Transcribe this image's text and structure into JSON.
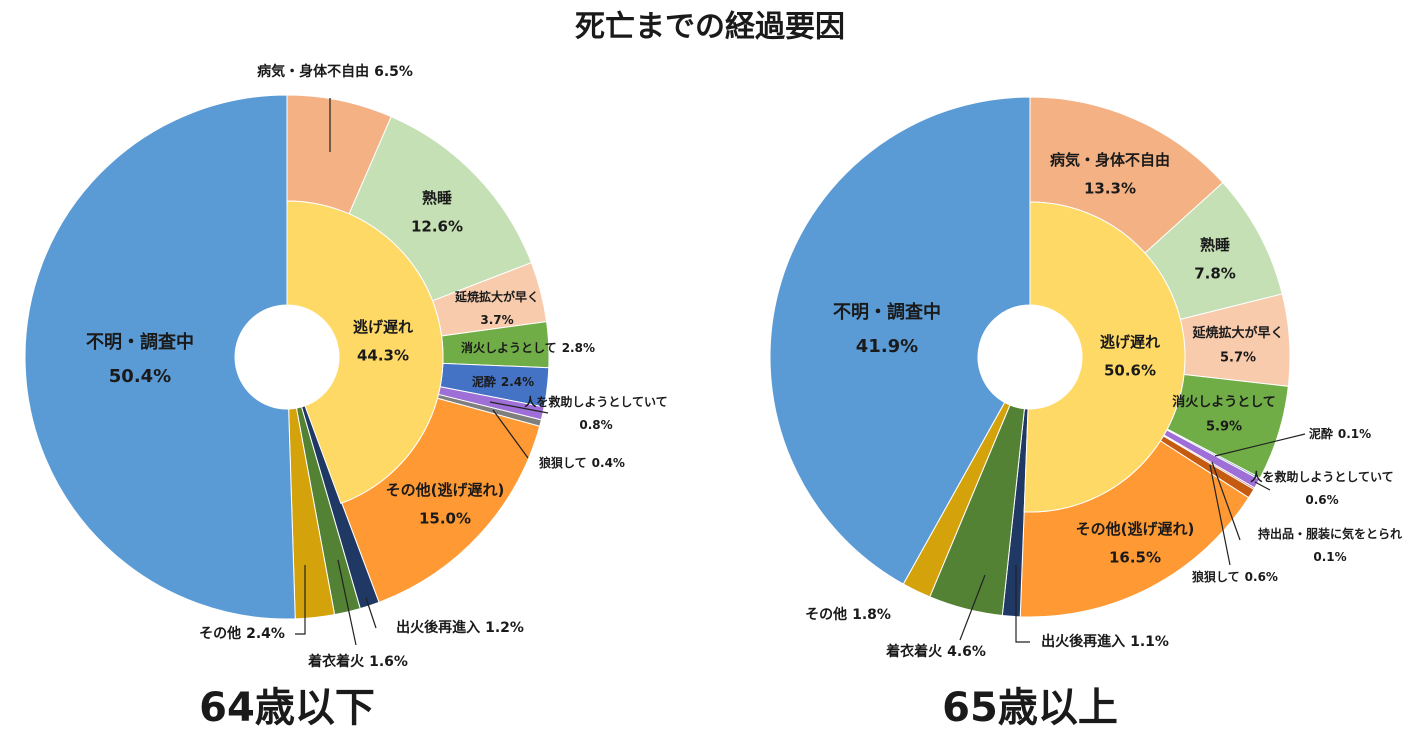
{
  "title": "死亡までの経過要因",
  "chart_data": [
    {
      "type": "sunburst",
      "title": "64歳以下",
      "inner": {
        "name": "逃げ遅れ",
        "value": 44.3,
        "value_label": "44.3%",
        "color": "#ffd966"
      },
      "segments": [
        {
          "name": "病気・身体不自由",
          "value": 6.5,
          "value_label": "6.5%",
          "color": "#f4b183",
          "ring": "outer"
        },
        {
          "name": "熟睡",
          "value": 12.6,
          "value_label": "12.6%",
          "color": "#c5e0b4",
          "ring": "outer"
        },
        {
          "name": "延焼拡大が早く",
          "value": 3.7,
          "value_label": "3.7%",
          "color": "#f8cbad",
          "ring": "outer"
        },
        {
          "name": "消火しようとして",
          "value": 2.8,
          "value_label": "2.8%",
          "color": "#70ad47",
          "ring": "outer"
        },
        {
          "name": "泥酔",
          "value": 2.4,
          "value_label": "2.4%",
          "color": "#4472c4",
          "ring": "outer"
        },
        {
          "name": "人を救助しようとしていて",
          "value": 0.8,
          "value_label": "0.8%",
          "color": "#9e6fd6",
          "ring": "outer"
        },
        {
          "name": "狼狽して",
          "value": 0.4,
          "value_label": "0.4%",
          "color": "#7f7f7f",
          "ring": "outer"
        },
        {
          "name": "その他(逃げ遅れ)",
          "value": 15.0,
          "value_label": "15.0%",
          "color": "#ff9933",
          "ring": "outer"
        },
        {
          "name": "出火後再進入",
          "value": 1.2,
          "value_label": "1.2%",
          "color": "#1f3864",
          "ring": "full"
        },
        {
          "name": "着衣着火",
          "value": 1.6,
          "value_label": "1.6%",
          "color": "#548235",
          "ring": "full"
        },
        {
          "name": "その他",
          "value": 2.4,
          "value_label": "2.4%",
          "color": "#d4a20a",
          "ring": "full"
        },
        {
          "name": "不明・調査中",
          "value": 50.4,
          "value_label": "50.4%",
          "color": "#5b9bd5",
          "ring": "full"
        }
      ]
    },
    {
      "type": "sunburst",
      "title": "65歳以上",
      "inner": {
        "name": "逃げ遅れ",
        "value": 50.6,
        "value_label": "50.6%",
        "color": "#ffd966"
      },
      "segments": [
        {
          "name": "病気・身体不自由",
          "value": 13.3,
          "value_label": "13.3%",
          "color": "#f4b183",
          "ring": "outer"
        },
        {
          "name": "熟睡",
          "value": 7.8,
          "value_label": "7.8%",
          "color": "#c5e0b4",
          "ring": "outer"
        },
        {
          "name": "延焼拡大が早く",
          "value": 5.7,
          "value_label": "5.7%",
          "color": "#f8cbad",
          "ring": "outer"
        },
        {
          "name": "消火しようとして",
          "value": 5.9,
          "value_label": "5.9%",
          "color": "#70ad47",
          "ring": "outer"
        },
        {
          "name": "泥酔",
          "value": 0.1,
          "value_label": "0.1%",
          "color": "#4472c4",
          "ring": "outer"
        },
        {
          "name": "人を救助しようとしていて",
          "value": 0.6,
          "value_label": "0.6%",
          "color": "#9e6fd6",
          "ring": "outer"
        },
        {
          "name": "持出品・服装に気をとられ",
          "value": 0.1,
          "value_label": "0.1%",
          "color": "#c0504d",
          "ring": "outer"
        },
        {
          "name": "狼狽して",
          "value": 0.6,
          "value_label": "0.6%",
          "color": "#c55a11",
          "ring": "outer"
        },
        {
          "name": "その他(逃げ遅れ)",
          "value": 16.5,
          "value_label": "16.5%",
          "color": "#ff9933",
          "ring": "outer"
        },
        {
          "name": "出火後再進入",
          "value": 1.1,
          "value_label": "1.1%",
          "color": "#1f3864",
          "ring": "full"
        },
        {
          "name": "着衣着火",
          "value": 4.6,
          "value_label": "4.6%",
          "color": "#548235",
          "ring": "full"
        },
        {
          "name": "その他",
          "value": 1.8,
          "value_label": "1.8%",
          "color": "#d4a20a",
          "ring": "full"
        },
        {
          "name": "不明・調査中",
          "value": 41.9,
          "value_label": "41.9%",
          "color": "#5b9bd5",
          "ring": "full"
        }
      ]
    }
  ]
}
